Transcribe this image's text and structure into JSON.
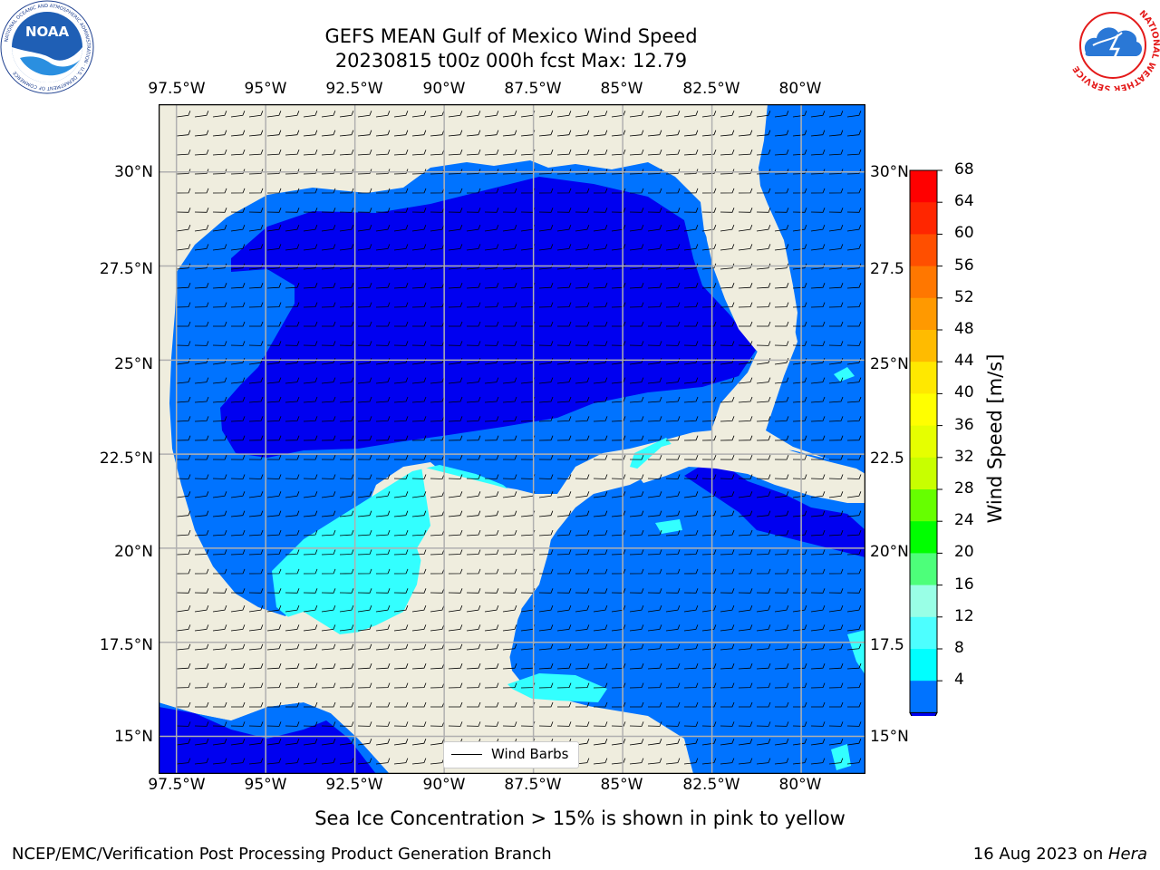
{
  "title": {
    "line1": "GEFS MEAN Gulf of Mexico Wind Speed",
    "line2": "20230815 t00z 000h fcst   Max: 12.79"
  },
  "map": {
    "lon_labels": [
      "97.5°W",
      "95°W",
      "92.5°W",
      "90°W",
      "87.5°W",
      "85°W",
      "82.5°W",
      "80°W"
    ],
    "lat_labels_left": [
      "30°N",
      "27.5°N",
      "25°N",
      "22.5°N",
      "20°N",
      "17.5°N",
      "15°N"
    ],
    "lat_labels_right": [
      "30°N",
      "27.5",
      "25°N",
      "22.5",
      "20°N",
      "17.5",
      "15°N"
    ],
    "lon_range": [
      -98,
      -78.2
    ],
    "lat_range": [
      14.0,
      31.8
    ],
    "colors": {
      "land": "#efedde",
      "ocean_4_8": "#0073ff",
      "ocean_lt_4": "#0000f0",
      "ocean_12_16": "#00ffff",
      "ocean_8_12": "#33ffff",
      "grid": "#b0b0b0"
    }
  },
  "legend": {
    "label": "Wind Barbs"
  },
  "colorbar": {
    "label": "Wind Speed [m/s]",
    "ticks": [
      "68",
      "64",
      "60",
      "56",
      "52",
      "48",
      "44",
      "40",
      "36",
      "32",
      "28",
      "24",
      "20",
      "16",
      "12",
      "8",
      "4"
    ],
    "colors_top_to_bottom": [
      "#ff0000",
      "#ff2600",
      "#ff4f00",
      "#ff7700",
      "#ff9900",
      "#ffbb00",
      "#ffe800",
      "#ffff00",
      "#e6ff00",
      "#c8ff00",
      "#66ff00",
      "#00ff00",
      "#4dff7a",
      "#99ffe6",
      "#4dffff",
      "#00ffff",
      "#0073ff"
    ],
    "extend_color": "#0000f0"
  },
  "subtitle": "Sea Ice Concentration > 15% is shown in pink to yellow",
  "footer": {
    "left": "NCEP/EMC/Verification Post Processing Product Generation Branch",
    "right_prefix": "16 Aug 2023 on ",
    "right_machine": "Hera"
  },
  "logos": {
    "noaa_text": "NOAA",
    "noaa_ring_text": "NATIONAL OCEANIC AND ATMOSPHERIC ADMINISTRATION · U.S. DEPARTMENT OF COMMERCE",
    "nws_ring_text": "NATIONAL WEATHER SERVICE"
  }
}
